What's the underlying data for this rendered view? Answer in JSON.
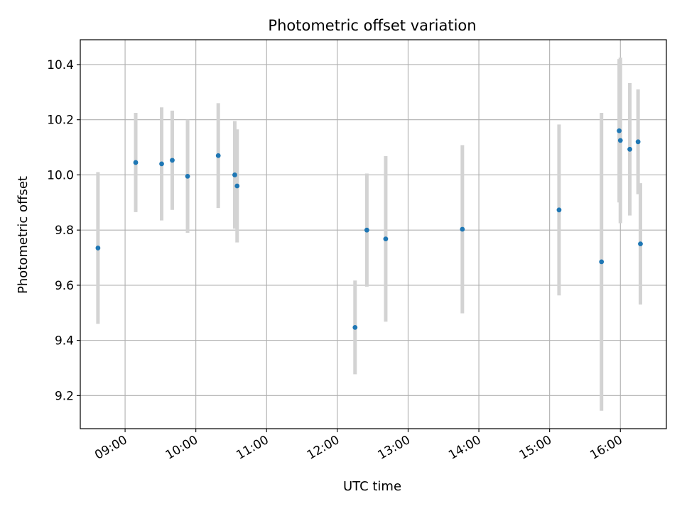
{
  "chart_data": {
    "type": "scatter",
    "title": "Photometric offset variation",
    "xlabel": "UTC time",
    "ylabel": "Photometric offset",
    "xlim": [
      "08:22",
      "16:39"
    ],
    "ylim": [
      9.08,
      10.49
    ],
    "x_ticks": [
      "09:00",
      "10:00",
      "11:00",
      "12:00",
      "13:00",
      "14:00",
      "15:00",
      "16:00"
    ],
    "y_ticks": [
      9.2,
      9.4,
      9.6,
      9.8,
      10.0,
      10.2,
      10.4
    ],
    "grid": true,
    "marker_color": "#1f77b4",
    "errorbar_color": "#d3d3d3",
    "points": [
      {
        "time": "08:37",
        "y": 9.735,
        "yerr": 0.275
      },
      {
        "time": "09:09",
        "y": 10.045,
        "yerr": 0.18
      },
      {
        "time": "09:31",
        "y": 10.04,
        "yerr": 0.205
      },
      {
        "time": "09:40",
        "y": 10.053,
        "yerr": 0.18
      },
      {
        "time": "09:53",
        "y": 9.995,
        "yerr": 0.205
      },
      {
        "time": "10:19",
        "y": 10.07,
        "yerr": 0.19
      },
      {
        "time": "10:33",
        "y": 10.0,
        "yerr": 0.195
      },
      {
        "time": "10:35",
        "y": 9.96,
        "yerr": 0.205
      },
      {
        "time": "12:15",
        "y": 9.447,
        "yerr": 0.17
      },
      {
        "time": "12:25",
        "y": 9.8,
        "yerr": 0.205
      },
      {
        "time": "12:41",
        "y": 9.768,
        "yerr": 0.3
      },
      {
        "time": "13:46",
        "y": 9.803,
        "yerr": 0.305
      },
      {
        "time": "15:08",
        "y": 9.873,
        "yerr": 0.31
      },
      {
        "time": "15:44",
        "y": 9.685,
        "yerr": 0.54
      },
      {
        "time": "15:59",
        "y": 10.16,
        "yerr": 0.26
      },
      {
        "time": "16:00",
        "y": 10.125,
        "yerr": 0.3
      },
      {
        "time": "16:08",
        "y": 10.093,
        "yerr": 0.24
      },
      {
        "time": "16:15",
        "y": 10.12,
        "yerr": 0.19
      },
      {
        "time": "16:17",
        "y": 9.75,
        "yerr": 0.22
      }
    ]
  }
}
